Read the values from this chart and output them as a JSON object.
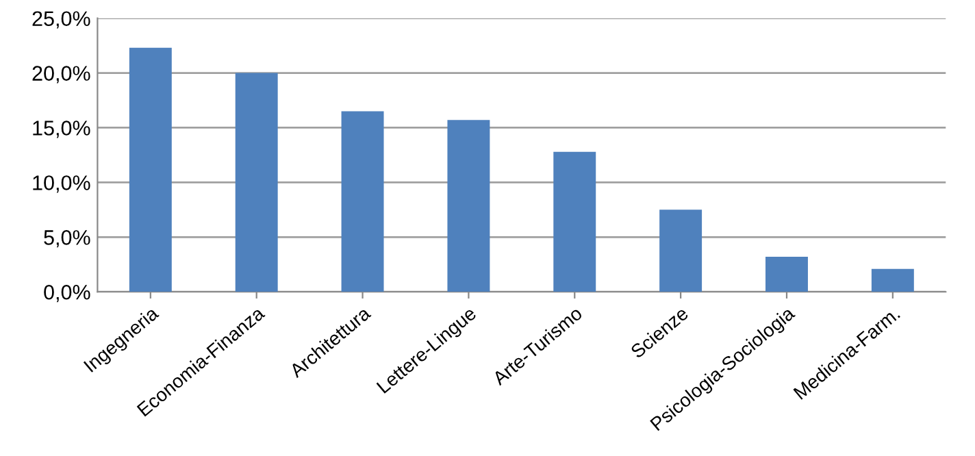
{
  "chart_data": {
    "type": "bar",
    "categories": [
      "Ingegneria",
      "Economia-Finanza",
      "Architettura",
      "Lettere-Lingue",
      "Arte-Turismo",
      "Scienze",
      "Psicologia-Sociologia",
      "Medicina-Farm."
    ],
    "values": [
      22.3,
      20.0,
      16.5,
      15.7,
      12.8,
      7.5,
      3.2,
      2.1
    ],
    "color": "#4f81bd",
    "ylim": [
      0,
      25
    ],
    "yticks": [
      {
        "value": 0,
        "label": "0,0%"
      },
      {
        "value": 5,
        "label": "5,0%"
      },
      {
        "value": 10,
        "label": "10,0%"
      },
      {
        "value": 15,
        "label": "15,0%"
      },
      {
        "value": 20,
        "label": "20,0%"
      },
      {
        "value": 25,
        "label": "25,0%"
      }
    ],
    "grid": "y"
  }
}
